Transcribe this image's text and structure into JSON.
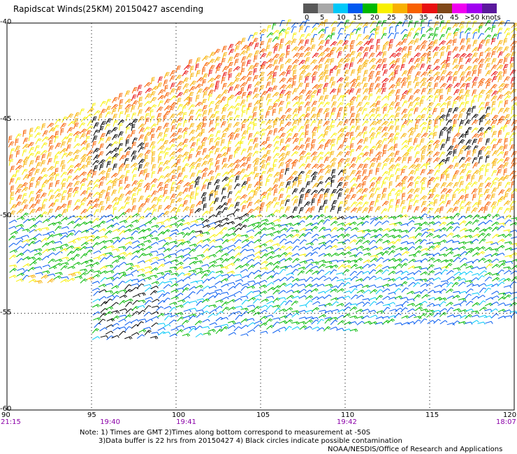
{
  "title": "Rapidscat Winds(25KM) 20150427 ascending",
  "colorbar": {
    "colors": [
      "#585858",
      "#a8a8a8",
      "#00c8f8",
      "#0058f0",
      "#00b800",
      "#f8f000",
      "#f8b000",
      "#f86000",
      "#e81010",
      "#804818",
      "#f000f0",
      "#a000f0",
      "#5a189c"
    ],
    "labels": [
      "0",
      "5",
      "10",
      "15",
      "20",
      "25",
      "30",
      "35",
      "40",
      "45",
      ">50 knots"
    ]
  },
  "chart_data": {
    "type": "wind barb map",
    "xlim": [
      90,
      120
    ],
    "ylim": [
      -60,
      -40
    ],
    "x_ticks": [
      "90",
      "95",
      "100",
      "105",
      "110",
      "115",
      "120"
    ],
    "y_ticks": [
      "-40",
      "-45",
      "-50",
      "-55",
      "-60"
    ],
    "grid": true,
    "time_labels": [
      {
        "lon": 90,
        "time": "21:15"
      },
      {
        "lon": 96,
        "time": "19:40"
      },
      {
        "lon": 100.5,
        "time": "19:41"
      },
      {
        "lon": 110,
        "time": "19:42"
      },
      {
        "lon": 119.6,
        "time": "18:07"
      }
    ],
    "swaths": [
      {
        "lon_min": 90,
        "lon_max": 120,
        "lat_north": -40,
        "lat_south_west": -53.5,
        "lat_south_east": -57,
        "lat_north_west": -46
      },
      {
        "lon_min": 95,
        "lon_max": 120,
        "lat_north": -52,
        "lat_south_west": -56.5,
        "lat_south_east": -55.5
      }
    ],
    "wind_regions": [
      {
        "lat_band": [
          -44,
          -41
        ],
        "lon_range": [
          96,
          120
        ],
        "speed_kt": [
          25,
          38
        ]
      },
      {
        "lat_band": [
          -50,
          -44
        ],
        "lon_range": [
          90,
          120
        ],
        "speed_kt": [
          20,
          35
        ]
      },
      {
        "lat_band": [
          -53,
          -50
        ],
        "lon_range": [
          90,
          120
        ],
        "speed_kt": [
          12,
          22
        ]
      },
      {
        "lat_band": [
          -57,
          -53
        ],
        "lon_range": [
          95,
          120
        ],
        "speed_kt": [
          8,
          18
        ]
      }
    ],
    "contamination_areas": [
      {
        "lon": 96.5,
        "lat": -46.5
      },
      {
        "lon": 102.5,
        "lat": -49.5
      },
      {
        "lon": 97,
        "lat": -55
      },
      {
        "lon": 108,
        "lat": -49
      },
      {
        "lon": 117,
        "lat": -46
      }
    ]
  },
  "notes": [
    "Note: 1) Times are GMT 2)Times along bottom correspond to measurement at -50S",
    "3)Data buffer is 22 hrs from 20150427 4) Black circles indicate possible contamination"
  ],
  "credit": "NOAA/NESDIS/Office of Research and Applications"
}
